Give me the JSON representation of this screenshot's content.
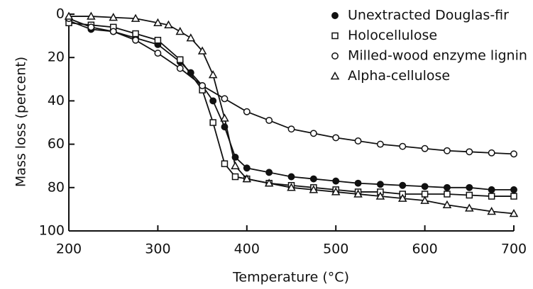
{
  "chart_data": {
    "type": "line",
    "xlabel": "Temperature (°C)",
    "ylabel": "Mass loss (percent)",
    "xlim": [
      200,
      700
    ],
    "xticks": [
      200,
      300,
      400,
      500,
      600,
      700
    ],
    "ylim": [
      0,
      100
    ],
    "yticks": [
      0,
      20,
      40,
      60,
      80,
      100
    ],
    "y_inverted": true,
    "legend": "upper right",
    "series": [
      {
        "name": "Unextracted Douglas-fir",
        "color": "#111111",
        "marker": "filled-circle",
        "x": [
          200,
          225,
          250,
          275,
          300,
          325,
          337,
          350,
          362,
          375,
          387,
          400,
          425,
          450,
          475,
          500,
          525,
          550,
          575,
          600,
          625,
          650,
          675,
          700
        ],
        "values": [
          3,
          7,
          8,
          11,
          14,
          22,
          27,
          33,
          40,
          52,
          66,
          71,
          73,
          75,
          76,
          77,
          78,
          78.5,
          79,
          79.5,
          80,
          80,
          81,
          81
        ]
      },
      {
        "name": "Holocellulose",
        "color": "#111111",
        "marker": "open-square",
        "x": [
          200,
          225,
          250,
          275,
          300,
          325,
          350,
          362,
          375,
          387,
          400,
          425,
          450,
          475,
          500,
          525,
          550,
          575,
          600,
          625,
          650,
          675,
          700
        ],
        "values": [
          4,
          5,
          6,
          9,
          12,
          21,
          35,
          50,
          69,
          75,
          76,
          78,
          79,
          80,
          81,
          82,
          82,
          83,
          83,
          83,
          83.5,
          84,
          84
        ]
      },
      {
        "name": "Milled-wood enzyme lignin",
        "color": "#111111",
        "marker": "open-circle",
        "x": [
          200,
          225,
          250,
          275,
          300,
          325,
          350,
          375,
          400,
          425,
          450,
          475,
          500,
          525,
          550,
          575,
          600,
          625,
          650,
          675,
          700
        ],
        "values": [
          2,
          6,
          8,
          12,
          18,
          25,
          33,
          39,
          45,
          49,
          53,
          55,
          57,
          58.5,
          60,
          61,
          62,
          63,
          63.5,
          64,
          64.5
        ]
      },
      {
        "name": "Alpha-cellulose",
        "color": "#111111",
        "marker": "open-triangle",
        "x": [
          200,
          225,
          250,
          275,
          300,
          312,
          325,
          337,
          350,
          362,
          375,
          387,
          400,
          425,
          450,
          475,
          500,
          525,
          550,
          575,
          600,
          625,
          650,
          675,
          700
        ],
        "values": [
          1,
          1,
          1.5,
          2,
          4,
          5,
          8,
          11,
          17,
          28,
          48,
          70,
          76,
          78,
          80,
          81,
          82,
          83,
          84,
          85,
          86,
          88,
          89.5,
          91,
          92
        ]
      }
    ]
  }
}
